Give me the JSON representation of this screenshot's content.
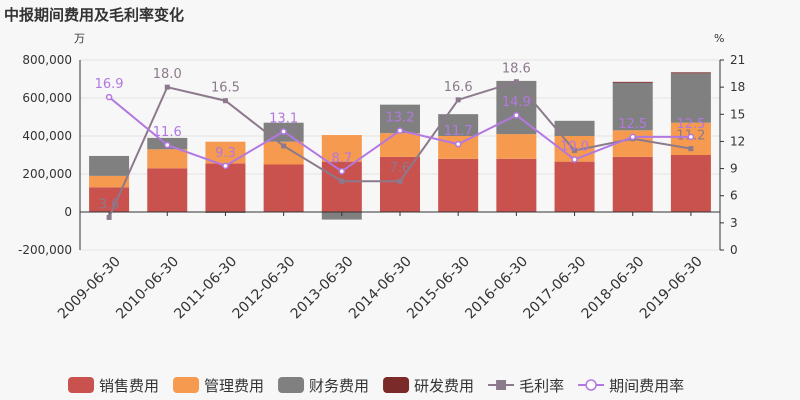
{
  "chart_data": {
    "type": "bar",
    "title": "中报期间费用及毛利率变化",
    "left_unit": "万",
    "right_unit": "%",
    "categories": [
      "2009-06-30",
      "2010-06-30",
      "2011-06-30",
      "2012-06-30",
      "2013-06-30",
      "2014-06-30",
      "2015-06-30",
      "2016-06-30",
      "2017-06-30",
      "2018-06-30",
      "2019-06-30"
    ],
    "ylim": [
      -200000,
      800000
    ],
    "y_ticks": [
      "800,000",
      "600,000",
      "400,000",
      "200,000",
      "0",
      "-200,000"
    ],
    "y2lim": [
      0,
      21
    ],
    "y2_ticks": [
      "21",
      "18",
      "15",
      "12",
      "9",
      "6",
      "3",
      "0"
    ],
    "bar_series": [
      {
        "name": "销售费用",
        "color": "#c9514e",
        "values": [
          130000,
          230000,
          255000,
          250000,
          265000,
          290000,
          280000,
          280000,
          265000,
          290000,
          300000
        ]
      },
      {
        "name": "管理费用",
        "color": "#f59a4f",
        "values": [
          60000,
          100000,
          115000,
          120000,
          140000,
          125000,
          120000,
          130000,
          135000,
          140000,
          170000
        ]
      },
      {
        "name": "财务费用",
        "color": "#808080",
        "values": [
          105000,
          60000,
          -5000,
          100000,
          -40000,
          150000,
          115000,
          280000,
          80000,
          250000,
          260000
        ]
      },
      {
        "name": "研发费用",
        "color": "#7b2a2a",
        "values": [
          0,
          0,
          0,
          0,
          0,
          0,
          0,
          0,
          0,
          5000,
          5000
        ]
      }
    ],
    "line_series": [
      {
        "name": "毛利率",
        "color": "#8c7a8c",
        "marker": "square",
        "values": [
          3.6,
          18.0,
          16.5,
          11.5,
          7.6,
          7.6,
          16.6,
          18.6,
          11.0,
          12.3,
          11.2
        ],
        "labels": [
          "3.6",
          "18.0",
          "16.5",
          "11.5",
          "",
          "7.6",
          "16.6",
          "18.6",
          "",
          "",
          "11.2"
        ]
      },
      {
        "name": "期间费用率",
        "color": "#b378e0",
        "marker": "circle",
        "values": [
          16.9,
          11.6,
          9.3,
          13.1,
          8.7,
          13.2,
          11.7,
          14.9,
          10.0,
          12.5,
          12.5
        ],
        "labels": [
          "16.9",
          "11.6",
          "9.3",
          "13.1",
          "8.7",
          "13.2",
          "11.7",
          "14.9",
          "10.0",
          "12.5",
          "12.5"
        ]
      }
    ]
  }
}
